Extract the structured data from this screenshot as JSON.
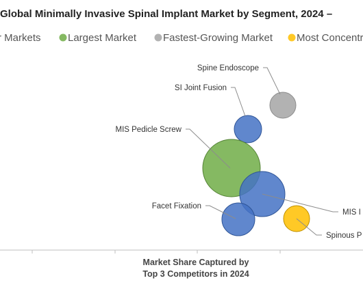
{
  "chart_data": {
    "type": "scatter",
    "title": "Global Minimally Invasive Spinal Implant Market by Segment, 2024 –",
    "xlabel": "Market Share Captured by Top 3 Competitors in 2024",
    "xlabel_lines": [
      "Market Share Captured by",
      "Top 3 Competitors in 2024"
    ],
    "ylabel": "",
    "legend": {
      "placement": "top",
      "entries": [
        {
          "label": "r Markets",
          "color": "#4472c4"
        },
        {
          "label": "Largest Market",
          "color": "#70ad47"
        },
        {
          "label": "Fastest-Growing Market",
          "color": "#a5a5a5"
        },
        {
          "label": "Most Concentr",
          "color": "#ffc000"
        }
      ]
    },
    "grid": false,
    "points": [
      {
        "label": "Spine Endoscope",
        "category": "Fastest-Growing Market",
        "color": "#a5a5a5",
        "relative_size": 0.45
      },
      {
        "label": "SI Joint Fusion",
        "category": "Markets",
        "color": "#4472c4",
        "relative_size": 0.5
      },
      {
        "label": "MIS Pedicle Screw",
        "category": "Largest Market",
        "color": "#70ad47",
        "relative_size": 1.0
      },
      {
        "label": "MIS I",
        "category": "Markets",
        "color": "#4472c4",
        "relative_size": 0.8
      },
      {
        "label": "Facet Fixation",
        "category": "Markets",
        "color": "#4472c4",
        "relative_size": 0.6
      },
      {
        "label": "Spinous P",
        "category": "Most Concentrated Market",
        "color": "#ffc000",
        "relative_size": 0.47
      }
    ]
  }
}
